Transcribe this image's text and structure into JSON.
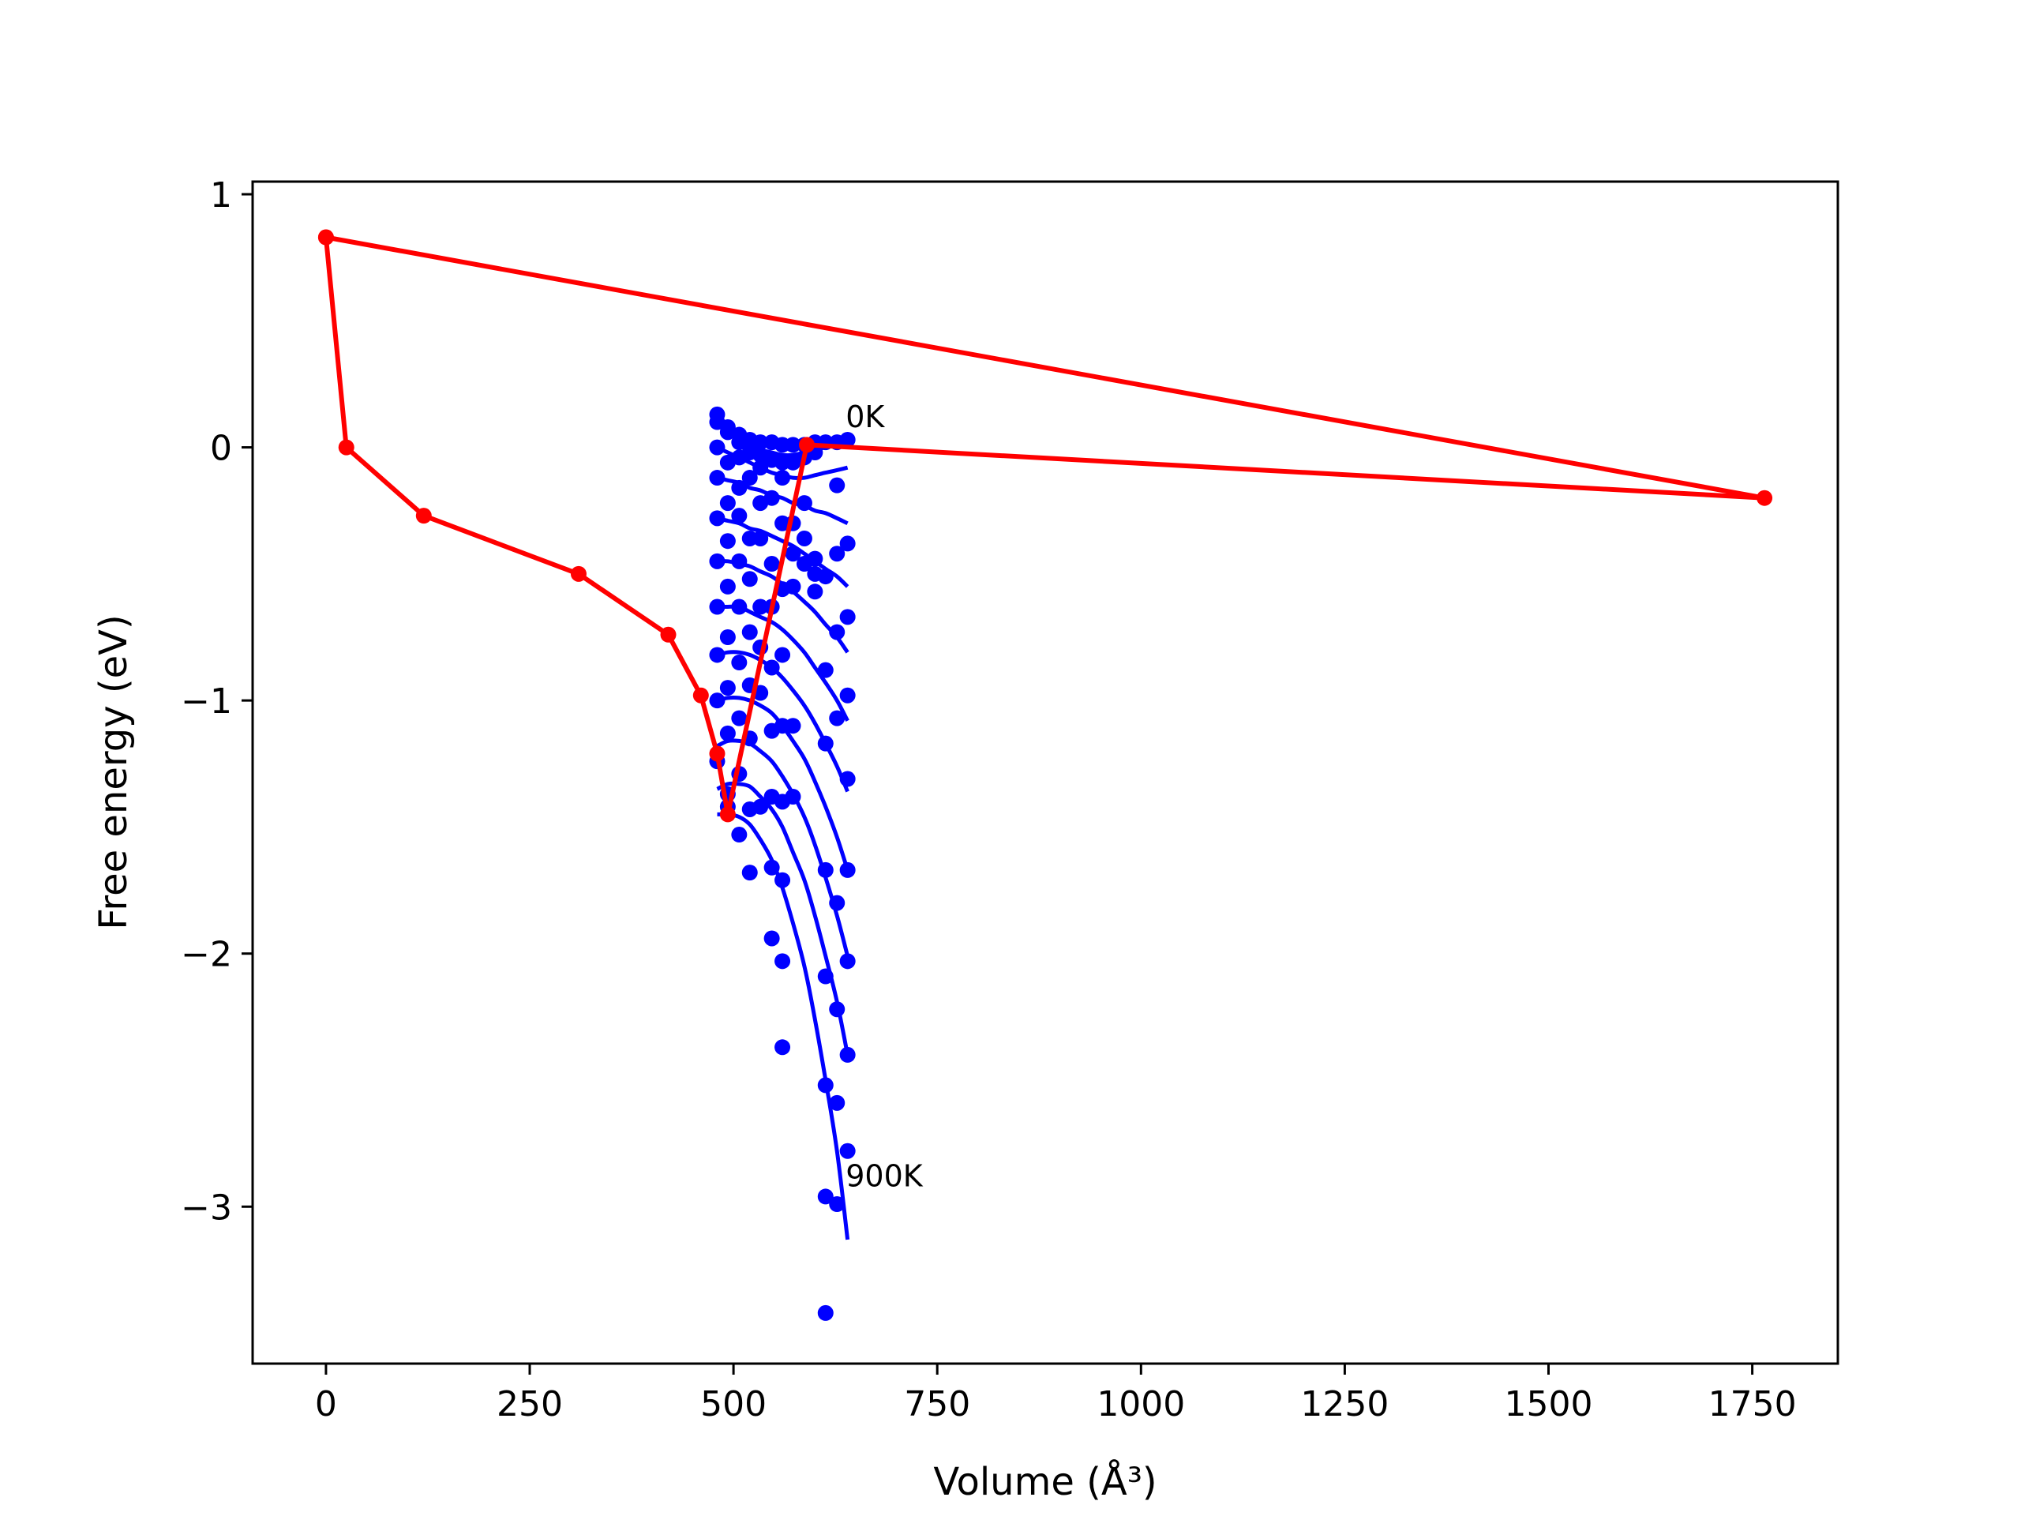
{
  "chart_data": {
    "type": "line",
    "title": "",
    "xlabel": "Volume (Å³)",
    "ylabel": "Free energy (eV)",
    "xlim": [
      -90,
      1855
    ],
    "ylim": [
      -3.62,
      1.05
    ],
    "xticks": [
      0,
      250,
      500,
      750,
      1000,
      1250,
      1500,
      1750
    ],
    "xtick_labels": [
      "0",
      "250",
      "500",
      "750",
      "1000",
      "1250",
      "1500",
      "1750"
    ],
    "yticks": [
      1,
      0,
      -1,
      -2,
      -3
    ],
    "ytick_labels": [
      "1",
      "0",
      "−1",
      "−2",
      "−3"
    ],
    "grid": false,
    "legend": "none",
    "colors": {
      "red": "#ff0000",
      "blue": "#0000ff",
      "frame": "#000000"
    },
    "annotations": [
      {
        "text": "0K",
        "x": 628,
        "y": 0.08
      },
      {
        "text": "900K",
        "x": 628,
        "y": -2.92
      }
    ],
    "volumes": [
      480,
      493,
      507,
      520,
      533,
      547,
      560,
      573,
      587,
      600,
      613,
      627,
      640
    ],
    "temperature_series": [
      {
        "energies": [
          0.13,
          0.08,
          0.05,
          0.03,
          0.02,
          0.015,
          0.01,
          0.005,
          0.01,
          0.015,
          0.02,
          0.02,
          0.03
        ]
      },
      {
        "energies": [
          0.1,
          0.06,
          0.03,
          0.0,
          -0.01,
          -0.02,
          -0.03,
          -0.03,
          -0.02,
          -0.01,
          0.0,
          0.01,
          0.02
        ]
      },
      {
        "energies": [
          0.0,
          -0.02,
          -0.04,
          -0.06,
          -0.08,
          -0.1,
          -0.11,
          -0.12,
          -0.12,
          -0.11,
          -0.1,
          -0.09,
          -0.08
        ]
      },
      {
        "energies": [
          -0.12,
          -0.13,
          -0.14,
          -0.16,
          -0.17,
          -0.19,
          -0.2,
          -0.22,
          -0.23,
          -0.25,
          -0.26,
          -0.28,
          -0.3
        ]
      },
      {
        "energies": [
          -0.28,
          -0.29,
          -0.3,
          -0.32,
          -0.33,
          -0.35,
          -0.37,
          -0.39,
          -0.42,
          -0.45,
          -0.48,
          -0.51,
          -0.55
        ]
      },
      {
        "energies": [
          -0.45,
          -0.45,
          -0.46,
          -0.47,
          -0.49,
          -0.51,
          -0.54,
          -0.57,
          -0.61,
          -0.65,
          -0.7,
          -0.75,
          -0.81
        ]
      },
      {
        "energies": [
          -0.63,
          -0.63,
          -0.63,
          -0.65,
          -0.67,
          -0.69,
          -0.72,
          -0.76,
          -0.81,
          -0.87,
          -0.93,
          -1.0,
          -1.08
        ]
      },
      {
        "energies": [
          -0.82,
          -0.81,
          -0.81,
          -0.82,
          -0.84,
          -0.87,
          -0.91,
          -0.96,
          -1.02,
          -1.09,
          -1.17,
          -1.26,
          -1.36
        ]
      },
      {
        "energies": [
          -1.0,
          -0.99,
          -0.99,
          -1.0,
          -1.02,
          -1.05,
          -1.1,
          -1.16,
          -1.23,
          -1.32,
          -1.42,
          -1.54,
          -1.67
        ]
      },
      {
        "energies": [
          -1.18,
          -1.16,
          -1.16,
          -1.17,
          -1.2,
          -1.24,
          -1.3,
          -1.37,
          -1.46,
          -1.57,
          -1.7,
          -1.85,
          -2.01
        ]
      },
      {
        "energies": [
          -1.35,
          -1.33,
          -1.33,
          -1.34,
          -1.38,
          -1.43,
          -1.5,
          -1.6,
          -1.71,
          -1.85,
          -2.01,
          -2.19,
          -2.4
        ]
      },
      {
        "energies": [
          -1.45,
          -1.45,
          -1.46,
          -1.49,
          -1.55,
          -1.63,
          -1.74,
          -1.88,
          -2.05,
          -2.26,
          -2.5,
          -2.78,
          -3.13
        ]
      }
    ],
    "scatter_points": [
      {
        "x": 480,
        "y": 0.13
      },
      {
        "x": 493,
        "y": 0.08
      },
      {
        "x": 507,
        "y": 0.05
      },
      {
        "x": 520,
        "y": 0.03
      },
      {
        "x": 533,
        "y": 0.02
      },
      {
        "x": 547,
        "y": 0.02
      },
      {
        "x": 560,
        "y": 0.01
      },
      {
        "x": 573,
        "y": 0.01
      },
      {
        "x": 587,
        "y": 0.01
      },
      {
        "x": 600,
        "y": 0.02
      },
      {
        "x": 613,
        "y": 0.02
      },
      {
        "x": 627,
        "y": 0.02
      },
      {
        "x": 640,
        "y": 0.03
      },
      {
        "x": 480,
        "y": 0.1
      },
      {
        "x": 493,
        "y": 0.06
      },
      {
        "x": 507,
        "y": 0.02
      },
      {
        "x": 520,
        "y": -0.02
      },
      {
        "x": 533,
        "y": -0.03
      },
      {
        "x": 547,
        "y": -0.05
      },
      {
        "x": 560,
        "y": -0.06
      },
      {
        "x": 573,
        "y": -0.06
      },
      {
        "x": 587,
        "y": -0.04
      },
      {
        "x": 600,
        "y": -0.02
      },
      {
        "x": 627,
        "y": -0.15
      },
      {
        "x": 640,
        "y": -0.38
      },
      {
        "x": 480,
        "y": 0.0
      },
      {
        "x": 493,
        "y": -0.06
      },
      {
        "x": 507,
        "y": -0.04
      },
      {
        "x": 520,
        "y": -0.12
      },
      {
        "x": 533,
        "y": -0.08
      },
      {
        "x": 547,
        "y": -0.2
      },
      {
        "x": 560,
        "y": -0.12
      },
      {
        "x": 573,
        "y": -0.3
      },
      {
        "x": 587,
        "y": -0.22
      },
      {
        "x": 600,
        "y": -0.44
      },
      {
        "x": 613,
        "y": -0.51
      },
      {
        "x": 627,
        "y": -0.42
      },
      {
        "x": 640,
        "y": -0.67
      },
      {
        "x": 480,
        "y": -0.12
      },
      {
        "x": 493,
        "y": -0.22
      },
      {
        "x": 507,
        "y": -0.16
      },
      {
        "x": 520,
        "y": -0.36
      },
      {
        "x": 533,
        "y": -0.22
      },
      {
        "x": 547,
        "y": -0.46
      },
      {
        "x": 560,
        "y": -0.3
      },
      {
        "x": 573,
        "y": -0.55
      },
      {
        "x": 587,
        "y": -0.36
      },
      {
        "x": 600,
        "y": -0.57
      },
      {
        "x": 613,
        "y": -0.88
      },
      {
        "x": 627,
        "y": -0.73
      },
      {
        "x": 640,
        "y": -0.98
      },
      {
        "x": 480,
        "y": -0.28
      },
      {
        "x": 493,
        "y": -0.37
      },
      {
        "x": 507,
        "y": -0.27
      },
      {
        "x": 520,
        "y": -0.52
      },
      {
        "x": 533,
        "y": -0.36
      },
      {
        "x": 547,
        "y": -0.63
      },
      {
        "x": 560,
        "y": -0.56
      },
      {
        "x": 573,
        "y": -0.42
      },
      {
        "x": 587,
        "y": -0.46
      },
      {
        "x": 600,
        "y": -0.5
      },
      {
        "x": 613,
        "y": -1.17
      },
      {
        "x": 627,
        "y": -1.07
      },
      {
        "x": 640,
        "y": -1.31
      },
      {
        "x": 480,
        "y": -0.45
      },
      {
        "x": 493,
        "y": -0.55
      },
      {
        "x": 507,
        "y": -0.45
      },
      {
        "x": 520,
        "y": -0.73
      },
      {
        "x": 533,
        "y": -0.63
      },
      {
        "x": 547,
        "y": -0.87
      },
      {
        "x": 560,
        "y": -0.82
      },
      {
        "x": 573,
        "y": -1.1
      },
      {
        "x": 613,
        "y": -1.67
      },
      {
        "x": 627,
        "y": -1.8
      },
      {
        "x": 640,
        "y": -1.67
      },
      {
        "x": 480,
        "y": -0.63
      },
      {
        "x": 493,
        "y": -0.75
      },
      {
        "x": 507,
        "y": -0.63
      },
      {
        "x": 520,
        "y": -0.94
      },
      {
        "x": 533,
        "y": -0.79
      },
      {
        "x": 547,
        "y": -1.12
      },
      {
        "x": 560,
        "y": -1.1
      },
      {
        "x": 573,
        "y": -1.38
      },
      {
        "x": 613,
        "y": -2.09
      },
      {
        "x": 627,
        "y": -2.22
      },
      {
        "x": 640,
        "y": -2.03
      },
      {
        "x": 480,
        "y": -0.82
      },
      {
        "x": 493,
        "y": -0.95
      },
      {
        "x": 507,
        "y": -0.85
      },
      {
        "x": 520,
        "y": -1.15
      },
      {
        "x": 533,
        "y": -0.97
      },
      {
        "x": 547,
        "y": -1.38
      },
      {
        "x": 560,
        "y": -1.4
      },
      {
        "x": 627,
        "y": -2.59
      },
      {
        "x": 640,
        "y": -2.4
      },
      {
        "x": 480,
        "y": -1.0
      },
      {
        "x": 493,
        "y": -1.13
      },
      {
        "x": 507,
        "y": -1.07
      },
      {
        "x": 520,
        "y": -1.43
      },
      {
        "x": 533,
        "y": -1.42
      },
      {
        "x": 547,
        "y": -1.66
      },
      {
        "x": 560,
        "y": -1.71
      },
      {
        "x": 613,
        "y": -2.52
      },
      {
        "x": 640,
        "y": -2.78
      },
      {
        "x": 480,
        "y": -1.24
      },
      {
        "x": 493,
        "y": -1.37
      },
      {
        "x": 507,
        "y": -1.29
      },
      {
        "x": 520,
        "y": -1.68
      },
      {
        "x": 547,
        "y": -1.94
      },
      {
        "x": 560,
        "y": -2.03
      },
      {
        "x": 613,
        "y": -2.96
      },
      {
        "x": 627,
        "y": -2.99
      },
      {
        "x": 493,
        "y": -1.42
      },
      {
        "x": 507,
        "y": -1.53
      },
      {
        "x": 560,
        "y": -2.37
      },
      {
        "x": 613,
        "y": -3.42
      }
    ],
    "red_series": [
      {
        "x": 0,
        "y": 0.83
      },
      {
        "x": 25,
        "y": 0.0
      },
      {
        "x": 120,
        "y": -0.27
      },
      {
        "x": 310,
        "y": -0.5
      },
      {
        "x": 420,
        "y": -0.74
      },
      {
        "x": 460,
        "y": -0.98
      },
      {
        "x": 480,
        "y": -1.21
      },
      {
        "x": 493,
        "y": -1.45
      },
      {
        "x": 590,
        "y": 0.01
      },
      {
        "x": 1765,
        "y": -0.2
      },
      {
        "x": 0,
        "y": 0.83
      }
    ]
  }
}
